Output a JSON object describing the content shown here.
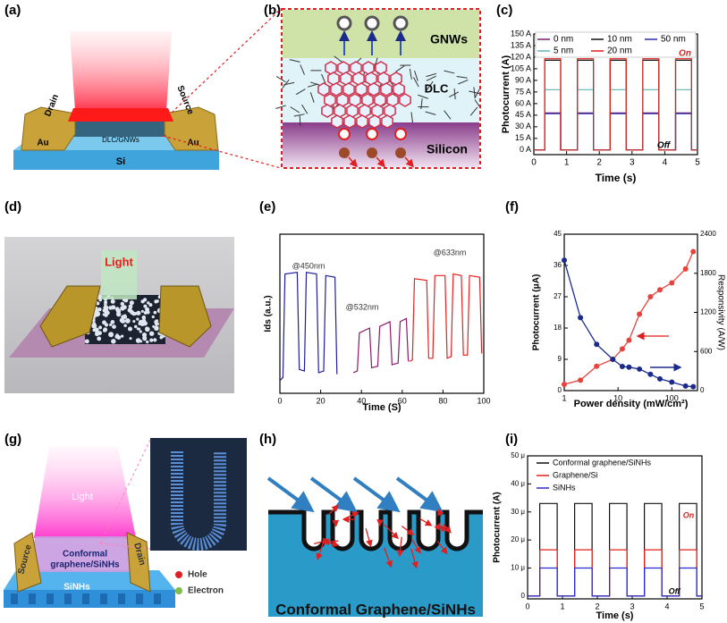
{
  "panel_labels": [
    "(a)",
    "(b)",
    "(c)",
    "(d)",
    "(e)",
    "(f)",
    "(g)",
    "(h)",
    "(i)"
  ],
  "diagrams": {
    "a": {
      "drain": "Drain",
      "source": "Source",
      "au_left": "Au",
      "au_right": "Au",
      "layer": "DLC/GNWs",
      "substrate": "Si"
    },
    "b": {
      "top": "GNWs",
      "middle": "DLC",
      "bottom": "Silicon"
    },
    "d": {
      "light": "Light"
    },
    "g": {
      "light": "Light",
      "source": "Source",
      "drain": "Drain",
      "channel": [
        "Conformal",
        "graphene/SiNHs"
      ],
      "substrate": "SiNHs",
      "legend": [
        "Hole",
        "Electron"
      ]
    },
    "h": {
      "caption": "Conformal Graphene/SiNHs"
    }
  },
  "chart_data": [
    {
      "type": "line",
      "xlabel": "Time (s)",
      "ylabel": "Photocurrent (A)",
      "x": [
        0,
        0.33,
        0.33,
        0.82,
        0.82,
        1.33,
        1.33,
        1.82,
        1.82,
        2.33,
        2.33,
        2.82,
        2.82,
        3.33,
        3.33,
        3.82,
        3.82,
        4.33,
        4.33,
        4.82,
        4.82,
        5
      ],
      "series": [
        {
          "name": "0 nm",
          "color": "#7b1f6e",
          "values": [
            0,
            0,
            48,
            48,
            0,
            0,
            48,
            48,
            0,
            0,
            48,
            48,
            0,
            0,
            48,
            48,
            0,
            0,
            48,
            48,
            0,
            0
          ]
        },
        {
          "name": "10 nm",
          "color": "#111111",
          "values": [
            0,
            0,
            116,
            116,
            0,
            0,
            116,
            116,
            0,
            0,
            116,
            116,
            0,
            0,
            116,
            116,
            0,
            0,
            116,
            116,
            0,
            0
          ]
        },
        {
          "name": "50 nm",
          "color": "#2a2aa8",
          "values": [
            0,
            0,
            47,
            47,
            0,
            0,
            47,
            47,
            0,
            0,
            47,
            47,
            0,
            0,
            47,
            47,
            0,
            0,
            47,
            47,
            0,
            0
          ]
        },
        {
          "name": "5 nm",
          "color": "#5fb8b0",
          "values": [
            0,
            0,
            78,
            78,
            0,
            0,
            78,
            78,
            0,
            0,
            78,
            78,
            0,
            0,
            78,
            78,
            0,
            0,
            78,
            78,
            0,
            0
          ]
        },
        {
          "name": "20 nm",
          "color": "#e0201b",
          "values": [
            0,
            0,
            118,
            118,
            0,
            0,
            118,
            118,
            0,
            0,
            118,
            118,
            0,
            0,
            118,
            118,
            0,
            0,
            118,
            118,
            0,
            0
          ]
        }
      ],
      "xlim": [
        0,
        5
      ],
      "xticks": [
        0,
        1,
        2,
        3,
        4,
        5
      ],
      "ylim": [
        -6,
        150
      ],
      "yticks": [
        {
          "value": 0,
          "label": "0 A"
        },
        {
          "value": 15,
          "label": "15 A"
        },
        {
          "value": 30,
          "label": "30 A"
        },
        {
          "value": 45,
          "label": "45 A"
        },
        {
          "value": 60,
          "label": "60 A"
        },
        {
          "value": 75,
          "label": "75 A"
        },
        {
          "value": 90,
          "label": "90 A"
        },
        {
          "value": 105,
          "label": "105 A"
        },
        {
          "value": 120,
          "label": "120 A"
        },
        {
          "value": 135,
          "label": "135 A"
        },
        {
          "value": 150,
          "label": "150 A"
        }
      ],
      "annotations": [
        "On",
        "Off"
      ]
    },
    {
      "type": "line",
      "xlabel": "Time (S)",
      "ylabel": "Ids (a.u.)",
      "series": [
        {
          "color": "#1f1f9a",
          "x": [
            0,
            1.5,
            2.5,
            8.5,
            9.5,
            12,
            13,
            18,
            19,
            21.5,
            22.5,
            27,
            28
          ],
          "values": [
            0.08,
            0.1,
            0.75,
            0.76,
            0.15,
            0.14,
            0.76,
            0.75,
            0.13,
            0.14,
            0.74,
            0.73,
            0.12
          ]
        },
        {
          "color": "#8b1a6b",
          "x": [
            36,
            38,
            39,
            44,
            45,
            48,
            49,
            54,
            55,
            58,
            59,
            62,
            63
          ],
          "values": [
            0.13,
            0.14,
            0.38,
            0.41,
            0.16,
            0.17,
            0.42,
            0.45,
            0.18,
            0.19,
            0.45,
            0.47,
            0.2
          ]
        },
        {
          "color": "#e82020",
          "x": [
            63.5,
            65,
            66,
            72,
            73,
            75,
            76,
            81,
            82,
            84,
            85,
            89,
            90,
            92,
            93,
            98,
            99
          ],
          "values": [
            0.2,
            0.21,
            0.72,
            0.71,
            0.22,
            0.22,
            0.74,
            0.74,
            0.22,
            0.23,
            0.75,
            0.74,
            0.24,
            0.24,
            0.74,
            0.73,
            0.25
          ]
        }
      ],
      "xlim": [
        0,
        100
      ],
      "xticks": [
        0,
        20,
        40,
        60,
        80,
        100
      ],
      "ylim": [
        0,
        1
      ],
      "annotations": [
        "@450nm",
        "@532nm",
        "@633nm"
      ]
    },
    {
      "type": "line",
      "xlabel": "Power density (mW/cm²)",
      "ylabel": "Photocurrent (μA)",
      "y2label": "Responsivity (A/W)",
      "xscale": "log",
      "markers": true,
      "series": [
        {
          "color": "#e8423a",
          "x": [
            1,
            2,
            4,
            8,
            12,
            16,
            25,
            40,
            60,
            100,
            180,
            250
          ],
          "values": [
            1.8,
            3,
            7,
            9,
            12,
            14.5,
            22,
            27,
            29,
            31,
            35,
            40
          ]
        },
        {
          "color": "#1a2b8c",
          "axis": "y2",
          "x": [
            1,
            2,
            4,
            8,
            12,
            16,
            25,
            40,
            60,
            100,
            180,
            250
          ],
          "values": [
            2000,
            1120,
            710,
            480,
            370,
            360,
            330,
            250,
            180,
            130,
            70,
            60
          ]
        }
      ],
      "xlim": [
        1,
        300
      ],
      "xticks": [
        1,
        10,
        100
      ],
      "ylim": [
        0,
        45
      ],
      "yticks": [
        0,
        9,
        18,
        27,
        36,
        45
      ],
      "y2lim": [
        0,
        2400
      ],
      "y2ticks": [
        0,
        600,
        1200,
        1800,
        2400
      ]
    },
    {
      "type": "line",
      "xlabel": "Time (s)",
      "ylabel": "Photocurrent (A)",
      "x": [
        0,
        0.35,
        0.35,
        0.85,
        0.85,
        1.35,
        1.35,
        1.85,
        1.85,
        2.35,
        2.35,
        2.85,
        2.85,
        3.35,
        3.35,
        3.85,
        3.85,
        4.35,
        4.35,
        4.85,
        4.85,
        5
      ],
      "series": [
        {
          "name": "Conformal graphene/SiNHs",
          "color": "#111111",
          "values": [
            0,
            0,
            33,
            33,
            0,
            0,
            33,
            33,
            0,
            0,
            33,
            33,
            0,
            0,
            33,
            33,
            0,
            0,
            33,
            33,
            0,
            0
          ]
        },
        {
          "name": "Graphene/Si",
          "color": "#e0201b",
          "values": [
            0,
            0,
            16.5,
            16.5,
            0,
            0,
            16.5,
            16.5,
            0,
            0,
            16.5,
            16.5,
            0,
            0,
            16.5,
            16.5,
            0,
            0,
            16.5,
            16.5,
            0,
            0
          ]
        },
        {
          "name": "SiNHs",
          "color": "#2a2ad0",
          "values": [
            0,
            0,
            10,
            10,
            0,
            0,
            10,
            10,
            0,
            0,
            10,
            10,
            0,
            0,
            10,
            10,
            0,
            0,
            10,
            10,
            0,
            0
          ]
        }
      ],
      "xlim": [
        0,
        5
      ],
      "xticks": [
        0,
        1,
        2,
        3,
        4,
        5
      ],
      "ylim": [
        -1,
        50
      ],
      "yticks": [
        0,
        {
          "value": 10,
          "label": "10 μ"
        },
        {
          "value": 20,
          "label": "20 μ"
        },
        {
          "value": 30,
          "label": "30 μ"
        },
        {
          "value": 40,
          "label": "40 μ"
        },
        {
          "value": 50,
          "label": "50 μ"
        }
      ],
      "annotations": [
        "On",
        "Off"
      ]
    }
  ]
}
